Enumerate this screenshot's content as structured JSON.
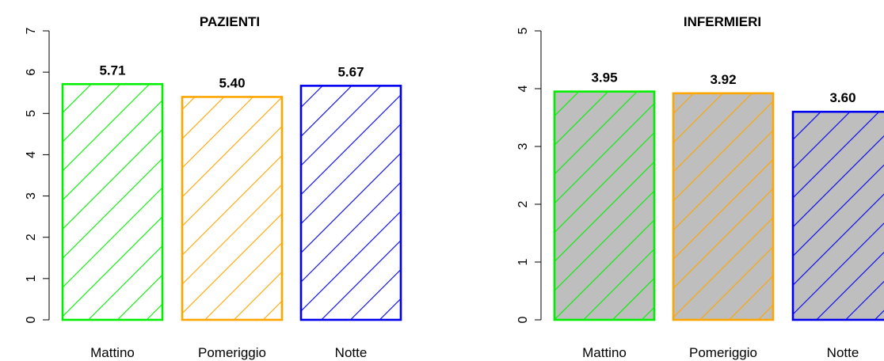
{
  "chart_data": [
    {
      "type": "bar",
      "title": "PAZIENTI",
      "categories": [
        "Mattino",
        "Pomeriggio",
        "Notte"
      ],
      "values": [
        5.71,
        5.4,
        5.67
      ],
      "value_labels": [
        "5.71",
        "5.40",
        "5.67"
      ],
      "colors": [
        "#00ee00",
        "#ffa500",
        "#0000ee"
      ],
      "fill": "none",
      "hatch": "diagonal",
      "ylim": [
        0,
        7
      ],
      "yticks": [
        0,
        1,
        2,
        3,
        4,
        5,
        6,
        7
      ],
      "xlabel": "",
      "ylabel": ""
    },
    {
      "type": "bar",
      "title": "INFERMIERI",
      "categories": [
        "Mattino",
        "Pomeriggio",
        "Notte"
      ],
      "values": [
        3.95,
        3.92,
        3.6
      ],
      "value_labels": [
        "3.95",
        "3.92",
        "3.60"
      ],
      "colors": [
        "#00ee00",
        "#ffa500",
        "#0000ee"
      ],
      "fill": "#bebebe",
      "hatch": "diagonal",
      "ylim": [
        0,
        5
      ],
      "yticks": [
        0,
        1,
        2,
        3,
        4,
        5
      ],
      "xlabel": "",
      "ylabel": ""
    }
  ]
}
